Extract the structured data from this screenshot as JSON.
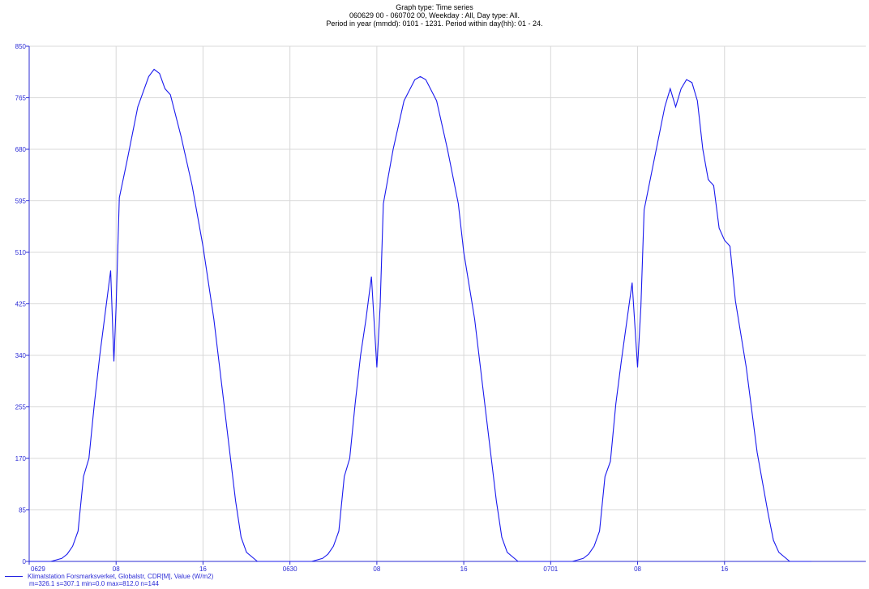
{
  "title": {
    "line1": "Graph type: Time series",
    "line2": "060629 00 - 060702 00, Weekday : All, Day type: All.",
    "line3": "Period in year (mmdd): 0101 - 1231. Period within day(hh): 01 - 24."
  },
  "legend": {
    "series": "Klimatstation Forsmarksverket, Globalstr, CDR[M], Value (W/m2)",
    "stats": "m=326.1 s=307.1 min=0.0 max=812.0 n=144"
  },
  "colors": {
    "line": "#1a1aee",
    "axis": "#2b2bd6",
    "grid": "#d8d8d8"
  },
  "chart_data": {
    "type": "line",
    "title": "Graph type: Time series",
    "xlabel": "",
    "ylabel": "",
    "ylim": [
      0,
      850
    ],
    "xlim": [
      0,
      77
    ],
    "x_unit": "hours since 0629 00",
    "yticks": [
      0,
      85,
      170,
      255,
      340,
      425,
      510,
      595,
      680,
      765,
      850
    ],
    "xticks": [
      {
        "x": 0,
        "label": "0629"
      },
      {
        "x": 8,
        "label": "08"
      },
      {
        "x": 16,
        "label": "16"
      },
      {
        "x": 24,
        "label": "0630"
      },
      {
        "x": 32,
        "label": "08"
      },
      {
        "x": 40,
        "label": "16"
      },
      {
        "x": 48,
        "label": "0701"
      },
      {
        "x": 56,
        "label": "08"
      },
      {
        "x": 64,
        "label": "16"
      }
    ],
    "series": [
      {
        "name": "Klimatstation Forsmarksverket, Globalstr, CDR[M], Value (W/m2)",
        "points": [
          [
            0,
            0
          ],
          [
            2,
            0
          ],
          [
            3,
            5
          ],
          [
            3.5,
            12
          ],
          [
            4,
            25
          ],
          [
            4.5,
            50
          ],
          [
            5,
            140
          ],
          [
            5.5,
            170
          ],
          [
            6,
            260
          ],
          [
            6.5,
            340
          ],
          [
            7,
            410
          ],
          [
            7.5,
            480
          ],
          [
            7.8,
            330
          ],
          [
            8,
            420
          ],
          [
            8.3,
            600
          ],
          [
            9,
            660
          ],
          [
            10,
            750
          ],
          [
            11,
            800
          ],
          [
            11.5,
            812
          ],
          [
            12,
            805
          ],
          [
            12.5,
            780
          ],
          [
            13,
            770
          ],
          [
            14,
            700
          ],
          [
            15,
            620
          ],
          [
            16,
            520
          ],
          [
            17,
            400
          ],
          [
            18,
            250
          ],
          [
            19,
            100
          ],
          [
            19.5,
            40
          ],
          [
            20,
            15
          ],
          [
            21,
            0
          ],
          [
            24,
            0
          ],
          [
            26,
            0
          ],
          [
            27,
            5
          ],
          [
            27.5,
            12
          ],
          [
            28,
            25
          ],
          [
            28.5,
            50
          ],
          [
            29,
            140
          ],
          [
            29.5,
            170
          ],
          [
            30,
            260
          ],
          [
            30.5,
            340
          ],
          [
            31,
            400
          ],
          [
            31.5,
            470
          ],
          [
            32,
            320
          ],
          [
            32.3,
            420
          ],
          [
            32.6,
            590
          ],
          [
            33.5,
            680
          ],
          [
            34.5,
            760
          ],
          [
            35.5,
            795
          ],
          [
            36,
            800
          ],
          [
            36.5,
            795
          ],
          [
            37.5,
            760
          ],
          [
            38.5,
            680
          ],
          [
            39.5,
            590
          ],
          [
            40,
            510
          ],
          [
            41,
            400
          ],
          [
            42,
            250
          ],
          [
            43,
            100
          ],
          [
            43.5,
            40
          ],
          [
            44,
            15
          ],
          [
            45,
            0
          ],
          [
            48,
            0
          ],
          [
            50,
            0
          ],
          [
            51,
            5
          ],
          [
            51.5,
            12
          ],
          [
            52,
            25
          ],
          [
            52.5,
            50
          ],
          [
            53,
            140
          ],
          [
            53.5,
            165
          ],
          [
            54,
            260
          ],
          [
            54.5,
            330
          ],
          [
            55,
            395
          ],
          [
            55.5,
            460
          ],
          [
            56,
            320
          ],
          [
            56.3,
            420
          ],
          [
            56.6,
            580
          ],
          [
            57.5,
            660
          ],
          [
            58.5,
            750
          ],
          [
            59,
            780
          ],
          [
            59.5,
            750
          ],
          [
            60,
            780
          ],
          [
            60.5,
            795
          ],
          [
            61,
            790
          ],
          [
            61.5,
            760
          ],
          [
            62,
            680
          ],
          [
            62.5,
            630
          ],
          [
            63,
            620
          ],
          [
            63.5,
            550
          ],
          [
            64,
            530
          ],
          [
            64.5,
            520
          ],
          [
            65,
            430
          ],
          [
            66,
            320
          ],
          [
            67,
            180
          ],
          [
            68,
            80
          ],
          [
            68.5,
            35
          ],
          [
            69,
            15
          ],
          [
            70,
            0
          ],
          [
            72,
            0
          ]
        ]
      }
    ]
  }
}
